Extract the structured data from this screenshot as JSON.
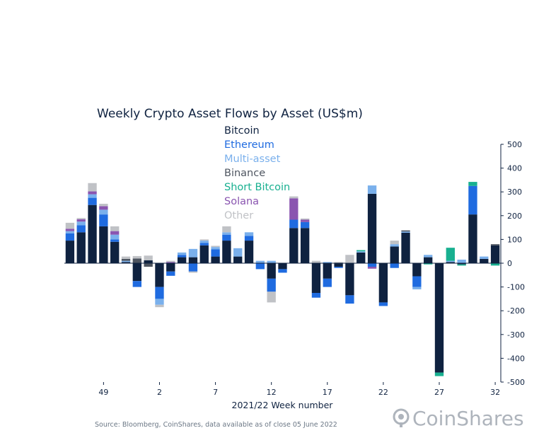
{
  "chart_data": {
    "type": "bar",
    "stacked": true,
    "title": "Weekly Crypto Asset Flows by Asset (US$m)",
    "xlabel": "2021/22 Week number",
    "ylabel": "",
    "ylim": [
      -500,
      500
    ],
    "yticks": [
      500,
      400,
      300,
      200,
      100,
      0,
      -100,
      -200,
      -300,
      -400,
      -500
    ],
    "y_axis_position": "right",
    "x_tick_labels": [
      {
        "index": 3,
        "label": "49"
      },
      {
        "index": 8,
        "label": "2"
      },
      {
        "index": 13,
        "label": "7"
      },
      {
        "index": 18,
        "label": "12"
      },
      {
        "index": 23,
        "label": "17"
      },
      {
        "index": 28,
        "label": "22"
      },
      {
        "index": 33,
        "label": "27"
      },
      {
        "index": 38,
        "label": "32"
      }
    ],
    "legend_position": "top-center",
    "grid": false,
    "n_weeks": 39,
    "series": [
      {
        "name": "Bitcoin",
        "color": "#0f2240",
        "values": [
          95,
          130,
          245,
          155,
          90,
          5,
          -75,
          12,
          -100,
          -35,
          25,
          25,
          75,
          28,
          95,
          28,
          95,
          0,
          -65,
          -25,
          148,
          148,
          -125,
          -65,
          -15,
          -135,
          45,
          292,
          -165,
          70,
          128,
          -55,
          25,
          -460,
          5,
          -5,
          205,
          18,
          75
        ]
      },
      {
        "name": "Ethereum",
        "color": "#1f6be0",
        "values": [
          30,
          30,
          30,
          50,
          10,
          0,
          -25,
          0,
          -50,
          -18,
          10,
          -35,
          10,
          30,
          25,
          0,
          20,
          -25,
          -55,
          -15,
          35,
          25,
          -20,
          -35,
          -5,
          -35,
          0,
          -15,
          -15,
          -20,
          0,
          -45,
          0,
          0,
          0,
          0,
          120,
          0,
          0
        ]
      },
      {
        "name": "Multi-asset",
        "color": "#7ab0ec",
        "values": [
          10,
          15,
          15,
          20,
          20,
          5,
          0,
          0,
          -25,
          0,
          10,
          35,
          10,
          10,
          10,
          35,
          15,
          10,
          10,
          0,
          0,
          0,
          0,
          5,
          0,
          0,
          5,
          35,
          0,
          10,
          5,
          -10,
          10,
          0,
          5,
          15,
          0,
          10,
          0
        ]
      },
      {
        "name": "Binance",
        "color": "#4e5560",
        "values": [
          0,
          0,
          0,
          0,
          0,
          8,
          20,
          -15,
          0,
          0,
          0,
          0,
          0,
          0,
          0,
          0,
          0,
          0,
          0,
          0,
          0,
          0,
          0,
          0,
          0,
          0,
          0,
          0,
          0,
          0,
          5,
          0,
          0,
          0,
          0,
          0,
          0,
          0,
          5
        ]
      },
      {
        "name": "Short Bitcoin",
        "color": "#18b090",
        "values": [
          0,
          0,
          0,
          0,
          0,
          0,
          0,
          0,
          0,
          0,
          0,
          0,
          0,
          0,
          0,
          0,
          0,
          0,
          0,
          0,
          0,
          0,
          0,
          0,
          0,
          0,
          5,
          0,
          0,
          0,
          0,
          0,
          -5,
          -15,
          55,
          -5,
          17,
          0,
          -10
        ]
      },
      {
        "name": "Solana",
        "color": "#8a55b0",
        "values": [
          10,
          10,
          12,
          15,
          15,
          0,
          0,
          0,
          0,
          5,
          0,
          0,
          0,
          0,
          0,
          0,
          0,
          0,
          0,
          0,
          90,
          10,
          0,
          0,
          0,
          0,
          0,
          -8,
          0,
          0,
          0,
          0,
          0,
          0,
          0,
          0,
          0,
          0,
          0
        ]
      },
      {
        "name": "Other",
        "color": "#c0c2c6",
        "values": [
          25,
          5,
          35,
          10,
          20,
          10,
          10,
          20,
          -10,
          5,
          0,
          -5,
          5,
          5,
          25,
          0,
          0,
          0,
          -45,
          0,
          8,
          5,
          10,
          0,
          5,
          35,
          0,
          0,
          0,
          15,
          0,
          0,
          0,
          0,
          0,
          0,
          0,
          0,
          0
        ]
      }
    ]
  },
  "source": "Source: Bloomberg, CoinShares, data available as of close 05 June 2022",
  "logo_text": "CoinShares"
}
